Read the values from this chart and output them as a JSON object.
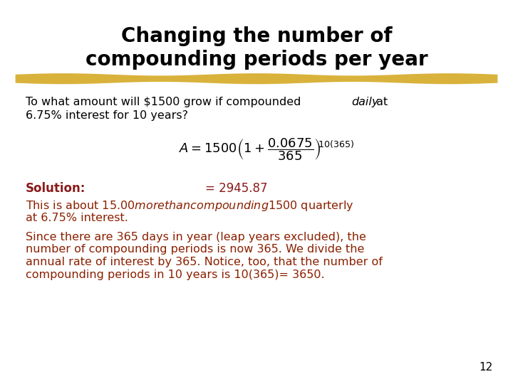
{
  "title_line1": "Changing the number of",
  "title_line2": "compounding periods per year",
  "title_color": "#000000",
  "title_fontsize": 20,
  "highlight_color": "#D4A820",
  "body_text_color": "#000000",
  "solution_label_color": "#8B1A1A",
  "solution_value_color": "#8B1A1A",
  "orange_text_color": "#8B2000",
  "solution_label": "Solution:",
  "solution_value": "= 2945.87",
  "page_number": "12",
  "bg_color": "#FFFFFF"
}
